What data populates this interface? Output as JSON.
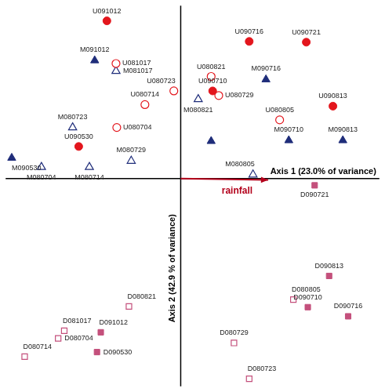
{
  "chart_data": {
    "type": "scatter",
    "x_label": "Axis 1 (23.0% of variance)",
    "y_label": "Axis 2 (42.9 % of variance)",
    "xlim": [
      -2.3,
      2.61
    ],
    "ylim": [
      -2.73,
      2.27
    ],
    "grid": false,
    "tick_labels": false,
    "arrows": [
      {
        "label": "rainfall",
        "x": 1.15,
        "y": -0.02,
        "color": "#b3001b"
      }
    ],
    "series": [
      {
        "color": "#e3161d",
        "marker": "circle",
        "labels": [
          "U091012",
          "U090716",
          "U090721",
          "U090710",
          "U090813",
          "U090530"
        ],
        "x": [
          -0.97,
          0.9,
          1.65,
          0.42,
          2.0,
          -1.34
        ],
        "y": [
          2.07,
          1.8,
          1.79,
          1.15,
          0.95,
          0.42
        ]
      },
      {
        "color": "#e3161d",
        "marker": "circle-open",
        "labels": [
          "U081017",
          "U080723",
          "U080714",
          "U080704",
          "U080821",
          "U080729",
          "U080805"
        ],
        "x": [
          -0.85,
          -0.09,
          -0.47,
          -0.84,
          0.4,
          0.5,
          1.3
        ],
        "y": [
          1.51,
          1.15,
          0.97,
          0.67,
          1.34,
          1.09,
          0.77
        ]
      },
      {
        "color": "#1f2d7a",
        "marker": "triangle",
        "labels": [
          "M091012",
          "M090716",
          null,
          "M090710",
          "M090813",
          "M090530"
        ],
        "x": [
          -1.13,
          1.12,
          0.4,
          1.42,
          2.13,
          -2.22
        ],
        "y": [
          1.55,
          1.3,
          0.49,
          0.5,
          0.5,
          0.27
        ]
      },
      {
        "color": "#1f2d7a",
        "marker": "triangle-open",
        "labels": [
          "M081017",
          "M080723",
          "M080729",
          "M080704",
          "M080714",
          "M080821",
          "M080805"
        ],
        "x": [
          -0.85,
          -1.42,
          -0.65,
          -1.83,
          -1.2,
          0.23,
          0.95
        ],
        "y": [
          1.41,
          0.67,
          0.23,
          0.15,
          0.15,
          1.04,
          0.05
        ]
      },
      {
        "color": "#c4507c",
        "marker": "square",
        "labels": [
          "D090721",
          "D090813",
          "D090710",
          "D090716",
          "D091012",
          "D090530"
        ],
        "x": [
          1.76,
          1.95,
          1.67,
          2.2,
          -1.05,
          -1.1
        ],
        "y": [
          -0.09,
          -1.28,
          -1.69,
          -1.81,
          -2.02,
          -2.28
        ]
      },
      {
        "color": "#c4507c",
        "marker": "square-open",
        "labels": [
          "D080805",
          "D080729",
          "D080723",
          "D080821",
          "D081017",
          "D080704",
          "D080714"
        ],
        "x": [
          1.48,
          0.7,
          0.9,
          -0.68,
          -1.53,
          -1.61,
          -2.05
        ],
        "y": [
          -1.59,
          -2.16,
          -2.63,
          -1.68,
          -2.0,
          -2.1,
          -2.34
        ]
      }
    ]
  }
}
